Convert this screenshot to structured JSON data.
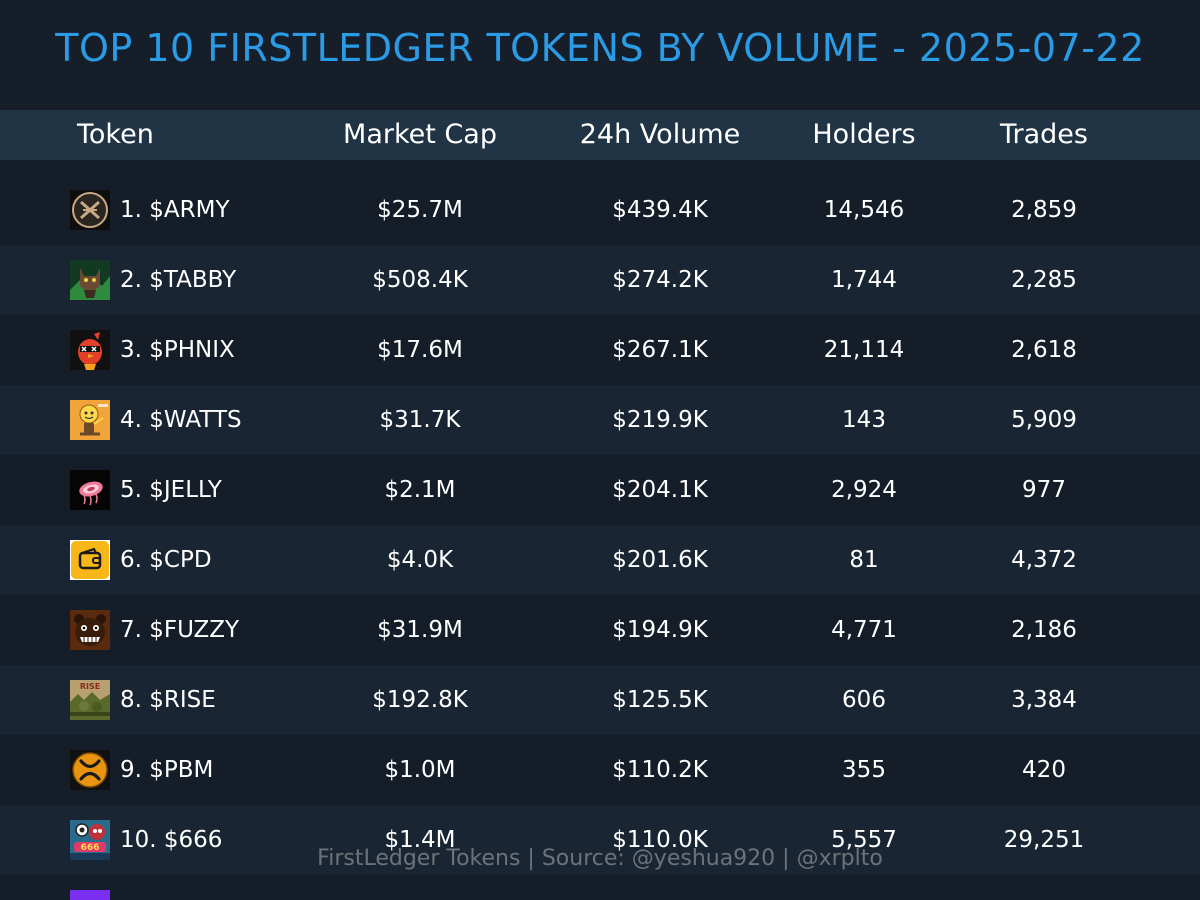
{
  "title": "TOP 10 FIRSTLEDGER TOKENS BY VOLUME - 2025-07-22",
  "columns": {
    "token": "Token",
    "market_cap": "Market Cap",
    "volume": "24h Volume",
    "holders": "Holders",
    "trades": "Trades"
  },
  "rows": [
    {
      "name": "1. $ARMY",
      "market_cap": "$25.7M",
      "volume": "$439.4K",
      "holders": "14,546",
      "trades": "2,859",
      "icon": "army-logo-icon"
    },
    {
      "name": "2. $TABBY",
      "market_cap": "$508.4K",
      "volume": "$274.2K",
      "holders": "1,744",
      "trades": "2,285",
      "icon": "tabby-cat-icon"
    },
    {
      "name": "3. $PHNIX",
      "market_cap": "$17.6M",
      "volume": "$267.1K",
      "holders": "21,114",
      "trades": "2,618",
      "icon": "phoenix-bird-icon"
    },
    {
      "name": "4. $WATTS",
      "market_cap": "$31.7K",
      "volume": "$219.9K",
      "holders": "143",
      "trades": "5,909",
      "icon": "lightbulb-mascot-icon"
    },
    {
      "name": "5. $JELLY",
      "market_cap": "$2.1M",
      "volume": "$204.1K",
      "holders": "2,924",
      "trades": "977",
      "icon": "jellyfish-icon"
    },
    {
      "name": "6. $CPD",
      "market_cap": "$4.0K",
      "volume": "$201.6K",
      "holders": "81",
      "trades": "4,372",
      "icon": "wallet-icon"
    },
    {
      "name": "7. $FUZZY",
      "market_cap": "$31.9M",
      "volume": "$194.9K",
      "holders": "4,771",
      "trades": "2,186",
      "icon": "fuzzy-bear-icon"
    },
    {
      "name": "8. $RISE",
      "market_cap": "$192.8K",
      "volume": "$125.5K",
      "holders": "606",
      "trades": "3,384",
      "icon": "rise-poster-icon",
      "icon_text": "RISE"
    },
    {
      "name": "9. $PBM",
      "market_cap": "$1.0M",
      "volume": "$110.2K",
      "holders": "355",
      "trades": "420",
      "icon": "xrp-coin-icon"
    },
    {
      "name": "10. $666",
      "market_cap": "$1.4M",
      "volume": "$110.0K",
      "holders": "5,557",
      "trades": "29,251",
      "icon": "666-character-icon",
      "icon_text": "666"
    }
  ],
  "footer": "FirstLedger Tokens | Source: @yeshua920 | @xrplto",
  "colors": {
    "background": "#151e29",
    "header_bg": "#213445",
    "row_dark": "#151d28",
    "row_light": "#192533",
    "title": "#2b9be6",
    "text": "#ffffff",
    "footer": "#6d7278"
  }
}
